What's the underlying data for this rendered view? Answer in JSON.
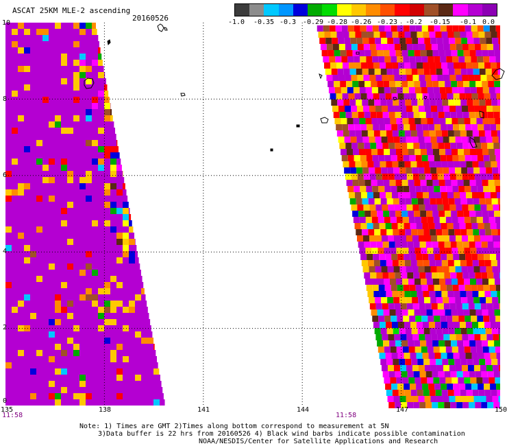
{
  "header": {
    "title": "ASCAT 25KM MLE-2 ascending",
    "date": "20160526"
  },
  "legend": {
    "colors": [
      "#3c3c3c",
      "#8c8c8c",
      "#00c8ff",
      "#0096ff",
      "#0000dc",
      "#00aa00",
      "#00dc00",
      "#ffff00",
      "#ffc800",
      "#ff8c00",
      "#ff5000",
      "#ff0000",
      "#d20000",
      "#a05028",
      "#5a2814",
      "#ff00ff",
      "#b400d2",
      "#8c00b4"
    ],
    "labels": [
      "-1.0",
      "-0.35",
      "-0.3",
      "-0.29",
      "-0.28",
      "-0.26",
      "-0.23",
      "-0.2",
      "-0.15",
      "-0.1",
      "0.0"
    ]
  },
  "axes": {
    "y_ticks": [
      "10",
      "8",
      "6",
      "4",
      "2",
      "0"
    ],
    "x_ticks": [
      "135",
      "138",
      "141",
      "144",
      "147",
      "150"
    ],
    "x_range": [
      135,
      150
    ],
    "y_range": [
      0,
      10
    ]
  },
  "times": {
    "left": "11:58",
    "right": "11:58"
  },
  "footer": {
    "line1": "Note: 1) Times are GMT 2)Times along bottom correspond to measurement at 5N",
    "line2": "3)Data buffer is 22 hrs from 20160526 4) Black wind barbs indicate possible contamination",
    "line3": "NOAA/NESDIS/Center for Satellite Applications and Research"
  }
}
